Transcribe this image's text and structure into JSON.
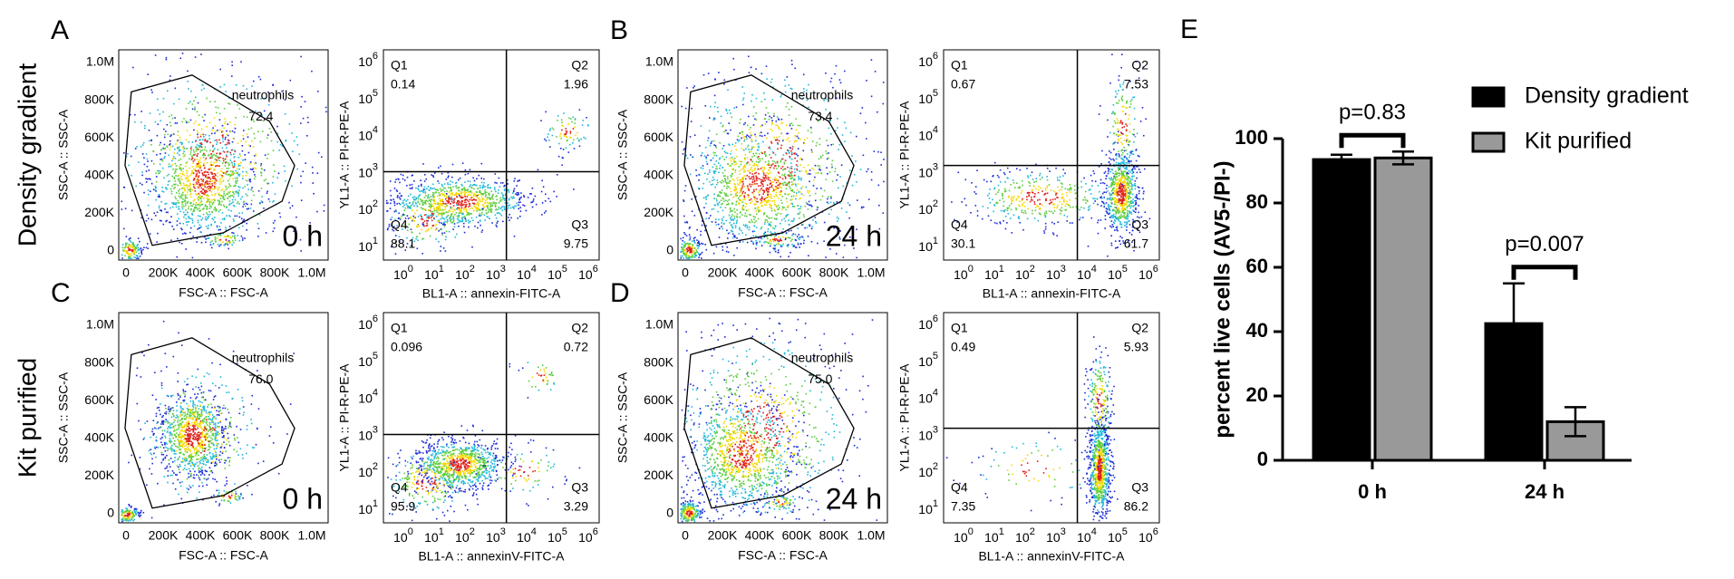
{
  "row_labels": [
    "Density gradient",
    "Kit purified"
  ],
  "scatter_ticks": [
    "0",
    "200K",
    "400K",
    "600K",
    "800K",
    "1.0M"
  ],
  "log_tick_base": "10",
  "log_tick_exponents": [
    "0",
    "1",
    "2",
    "3",
    "4",
    "5",
    "6"
  ],
  "flow_panels": [
    {
      "letter": "A",
      "scatter": {
        "x_label": "FSC-A :: FSC-A",
        "y_label": "SSC-A :: SSC-A",
        "gate_name": "neutrophils",
        "gate_value": "72.4",
        "time": "0 h"
      },
      "quad": {
        "x_label": "BL1-A :: annexin-FITC-A",
        "y_label": "YL1-A :: PI-R-PE-A",
        "quadrants": [
          {
            "name": "Q1",
            "value": "0.14"
          },
          {
            "name": "Q2",
            "value": "1.96"
          },
          {
            "name": "Q3",
            "value": "9.75"
          },
          {
            "name": "Q4",
            "value": "88.1"
          }
        ]
      }
    },
    {
      "letter": "B",
      "scatter": {
        "x_label": "FSC-A :: FSC-A",
        "y_label": "SSC-A :: SSC-A",
        "gate_name": "neutrophils",
        "gate_value": "73.4",
        "time": "24 h"
      },
      "quad": {
        "x_label": "BL1-A :: annexin-FITC-A",
        "y_label": "YL1-A :: PI-R-PE-A",
        "quadrants": [
          {
            "name": "Q1",
            "value": "0.67"
          },
          {
            "name": "Q2",
            "value": "7.53"
          },
          {
            "name": "Q3",
            "value": "61.7"
          },
          {
            "name": "Q4",
            "value": "30.1"
          }
        ]
      }
    },
    {
      "letter": "C",
      "scatter": {
        "x_label": "FSC-A :: FSC-A",
        "y_label": "SSC-A :: SSC-A",
        "gate_name": "neutrophils",
        "gate_value": "76.0",
        "time": "0 h"
      },
      "quad": {
        "x_label": "BL1-A :: annexinV-FITC-A",
        "y_label": "YL1-A :: PI-R-PE-A",
        "quadrants": [
          {
            "name": "Q1",
            "value": "0.096"
          },
          {
            "name": "Q2",
            "value": "0.72"
          },
          {
            "name": "Q3",
            "value": "3.29"
          },
          {
            "name": "Q4",
            "value": "95.9"
          }
        ]
      }
    },
    {
      "letter": "D",
      "scatter": {
        "x_label": "FSC-A :: FSC-A",
        "y_label": "SSC-A :: SSC-A",
        "gate_name": "neutrophils",
        "gate_value": "75.0",
        "time": "24 h"
      },
      "quad": {
        "x_label": "BL1-A :: annexinV-FITC-A",
        "y_label": "YL1-A :: PI-R-PE-A",
        "quadrants": [
          {
            "name": "Q1",
            "value": "0.49"
          },
          {
            "name": "Q2",
            "value": "5.93"
          },
          {
            "name": "Q3",
            "value": "86.2"
          },
          {
            "name": "Q4",
            "value": "7.35"
          }
        ]
      }
    }
  ],
  "chart_data": {
    "type": "bar",
    "letter": "E",
    "y_label": "percent live cells (AV5-/PI-)",
    "categories": [
      "0 h",
      "24 h"
    ],
    "series": [
      {
        "name": "Density gradient",
        "color": "#000000",
        "values": [
          93.5,
          42.5
        ],
        "errors": [
          1.5,
          12.5
        ]
      },
      {
        "name": "Kit purified",
        "color": "#999999",
        "values": [
          94,
          12
        ],
        "errors": [
          2,
          4.5
        ]
      }
    ],
    "annotations": [
      "p=0.83",
      "p=0.007"
    ],
    "ylim": [
      0,
      100
    ],
    "yticks": [
      0,
      20,
      40,
      60,
      80,
      100
    ]
  }
}
